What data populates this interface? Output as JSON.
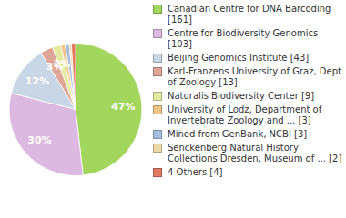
{
  "chart_data": {
    "type": "pie",
    "categories": [
      "Canadian Centre for DNA Barcoding [161]",
      "Centre for Biodiversity Genomics [103]",
      "Beijing Genomics Institute [43]",
      "Karl-Franzens University of Graz, Dept of Zoology [13]",
      "Naturalis Biodiversity Center [9]",
      "University of Lodz, Department of Invertebrate Zoology and ... [3]",
      "Mined from GenBank, NCBI [3]",
      "Senckenberg Natural History Collections Dresden, Museum of ... [2]",
      "4 Others [4]"
    ],
    "values": [
      47,
      30,
      12,
      3,
      2,
      1,
      1,
      0.5,
      1
    ],
    "value_labels": [
      "47%",
      "30%",
      "12%",
      "3%",
      "2%",
      null,
      null,
      null,
      null
    ],
    "colors": [
      "#a3d65c",
      "#dcb9e0",
      "#c9d6e6",
      "#dfa596",
      "#e3ea9f",
      "#f1c58a",
      "#a6bedd",
      "#ecd9a8",
      "#e0795e"
    ],
    "data_labels": true,
    "legend": "right"
  }
}
